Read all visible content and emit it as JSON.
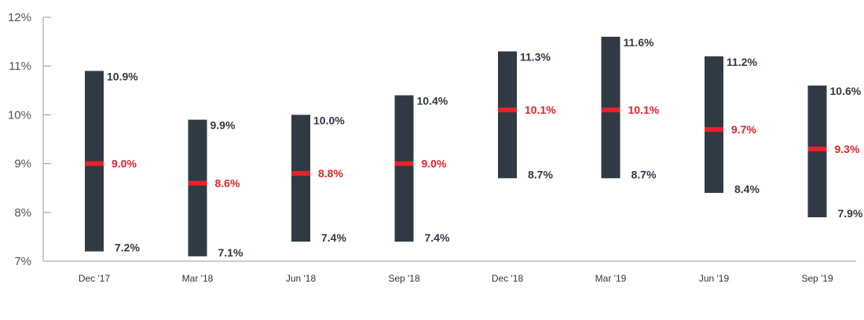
{
  "chart_data": {
    "type": "range-bar",
    "categories": [
      "Dec '17",
      "Mar '18",
      "Jun '18",
      "Sep '18",
      "Dec '18",
      "Mar '19",
      "Jun '19",
      "Sep '19"
    ],
    "high": [
      10.9,
      9.9,
      10.0,
      10.4,
      11.3,
      11.6,
      11.2,
      10.6
    ],
    "low": [
      7.2,
      7.1,
      7.4,
      7.4,
      8.7,
      8.7,
      8.4,
      7.9
    ],
    "mid": [
      9.0,
      8.6,
      8.8,
      9.0,
      10.1,
      10.1,
      9.7,
      9.3
    ],
    "high_labels": [
      "10.9%",
      "9.9%",
      "10.0%",
      "10.4%",
      "11.3%",
      "11.6%",
      "11.2%",
      "10.6%"
    ],
    "low_labels": [
      "7.2%",
      "7.1%",
      "7.4%",
      "7.4%",
      "8.7%",
      "8.7%",
      "8.4%",
      "7.9%"
    ],
    "mid_labels": [
      "9.0%",
      "8.6%",
      "8.8%",
      "9.0%",
      "10.1%",
      "10.1%",
      "9.7%",
      "9.3%"
    ],
    "y_ticks": [
      7,
      8,
      9,
      10,
      11,
      12
    ],
    "y_tick_labels": [
      "7%",
      "8%",
      "9%",
      "10%",
      "11%",
      "12%"
    ],
    "ylim": [
      7,
      12
    ],
    "title": "",
    "xlabel": "",
    "ylabel": "",
    "grid": false,
    "colors": {
      "bar": "#2f3a45",
      "mid": "#e8222b",
      "axis": "#999999",
      "label_dark": "#2f3a45",
      "label_red": "#e8222b"
    }
  }
}
